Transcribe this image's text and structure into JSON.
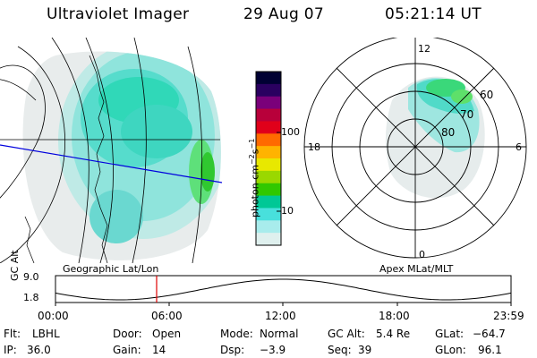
{
  "header": {
    "title": "Ultraviolet Imager",
    "date": "29 Aug 07",
    "time": "05:21:14 UT"
  },
  "colorbar": {
    "unit_label": "photon cm",
    "unit_exp1": "−2",
    "unit_mid": "s",
    "unit_exp2": "−1",
    "tick_100": "100",
    "tick_10": "10",
    "colors": [
      "#000033",
      "#2a0060",
      "#7a007a",
      "#b8003a",
      "#e0001a",
      "#ff6a00",
      "#ffb300",
      "#e8e800",
      "#9ad800",
      "#30c800",
      "#00c896",
      "#48e0dc",
      "#a8ecec",
      "#dff0ee"
    ]
  },
  "panels": {
    "geo_label": "Geographic Lat/Lon",
    "apex_label": "Apex MLat/MLT"
  },
  "polar": {
    "mlt_12": "12",
    "mlt_18": "18",
    "mlt_6": "6",
    "mlt_0": "0",
    "lat_60": "60",
    "lat_70": "70",
    "lat_80": "80"
  },
  "alt_strip": {
    "axis_label": "GC Alt",
    "y_top": "9.0",
    "y_bottom": "1.8",
    "ticks": [
      "00:00",
      "06:00",
      "12:00",
      "18:00",
      "23:59"
    ],
    "current_time_fraction": 0.222
  },
  "info": {
    "flt_label": "Flt:",
    "flt_value": "LBHL",
    "ip_label": "IP:",
    "ip_value": "36.0",
    "door_label": "Door:",
    "door_value": "Open",
    "gain_label": "Gain:",
    "gain_value": "14",
    "mode_label": "Mode:",
    "mode_value": "Normal",
    "dsp_label": "Dsp:",
    "dsp_value": "−3.9",
    "gcalt_label": "GC Alt:",
    "gcalt_value": "5.4 Re",
    "seq_label": "Seq:",
    "seq_value": "39",
    "glat_label": "GLat:",
    "glat_value": "−64.7",
    "glon_label": "GLon:",
    "glon_value": "96.1"
  }
}
